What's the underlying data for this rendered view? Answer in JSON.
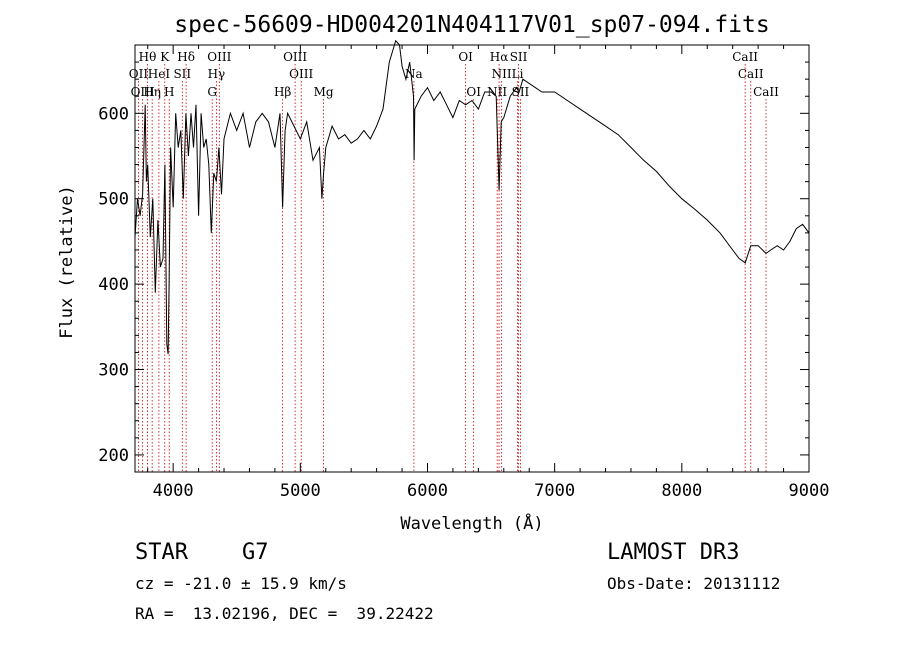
{
  "chart_data": {
    "type": "line",
    "title": "spec-56609-HD004201N404117V01_sp07-094.fits",
    "xlabel": "Wavelength (Å)",
    "ylabel": "Flux (relative)",
    "xlim": [
      3700,
      9000
    ],
    "ylim": [
      180,
      680
    ],
    "xticks": [
      4000,
      5000,
      6000,
      7000,
      8000,
      9000
    ],
    "yticks": [
      200,
      300,
      400,
      500,
      600
    ],
    "xtick_labels": [
      "4000",
      "5000",
      "6000",
      "7000",
      "8000",
      "9000"
    ],
    "ytick_labels": [
      "200",
      "300",
      "400",
      "500",
      "600"
    ],
    "grid": false,
    "series": [
      {
        "name": "flux",
        "x": [
          3700,
          3720,
          3740,
          3760,
          3780,
          3790,
          3800,
          3820,
          3840,
          3860,
          3880,
          3900,
          3920,
          3935,
          3950,
          3960,
          3968,
          3980,
          4000,
          4020,
          4040,
          4060,
          4080,
          4100,
          4120,
          4140,
          4160,
          4180,
          4200,
          4220,
          4240,
          4260,
          4280,
          4300,
          4320,
          4340,
          4360,
          4380,
          4400,
          4450,
          4500,
          4550,
          4600,
          4650,
          4700,
          4750,
          4800,
          4840,
          4861,
          4880,
          4900,
          4950,
          5000,
          5050,
          5100,
          5150,
          5170,
          5183,
          5200,
          5250,
          5300,
          5350,
          5400,
          5450,
          5500,
          5550,
          5600,
          5650,
          5700,
          5750,
          5780,
          5800,
          5830,
          5860,
          5890,
          5895,
          5900,
          5950,
          6000,
          6050,
          6100,
          6150,
          6200,
          6250,
          6300,
          6350,
          6400,
          6450,
          6500,
          6540,
          6563,
          6580,
          6600,
          6650,
          6700,
          6720,
          6750,
          6800,
          6900,
          7000,
          7100,
          7200,
          7300,
          7400,
          7500,
          7600,
          7700,
          7800,
          7900,
          8000,
          8100,
          8200,
          8300,
          8400,
          8450,
          8498,
          8542,
          8600,
          8662,
          8700,
          8750,
          8800,
          8850,
          8900,
          8950,
          9000
        ],
        "values": [
          455,
          500,
          480,
          505,
          610,
          520,
          540,
          455,
          500,
          390,
          475,
          420,
          430,
          540,
          330,
          318,
          400,
          560,
          490,
          600,
          560,
          580,
          500,
          600,
          550,
          600,
          560,
          610,
          480,
          600,
          560,
          570,
          540,
          460,
          530,
          520,
          560,
          505,
          570,
          600,
          580,
          600,
          560,
          590,
          600,
          590,
          560,
          600,
          490,
          580,
          600,
          585,
          570,
          590,
          545,
          560,
          500,
          530,
          560,
          585,
          570,
          575,
          565,
          570,
          580,
          570,
          585,
          605,
          660,
          685,
          680,
          655,
          640,
          660,
          620,
          545,
          605,
          620,
          630,
          615,
          625,
          610,
          595,
          615,
          610,
          615,
          605,
          625,
          625,
          620,
          510,
          590,
          595,
          620,
          630,
          625,
          640,
          635,
          625,
          625,
          615,
          605,
          595,
          585,
          575,
          560,
          545,
          532,
          515,
          500,
          488,
          475,
          460,
          440,
          430,
          425,
          445,
          445,
          436,
          440,
          445,
          440,
          450,
          465,
          470,
          460
        ]
      }
    ],
    "line_markers": [
      {
        "label": "Hθ",
        "x": 3798,
        "row": 1
      },
      {
        "label": "K",
        "x": 3934,
        "row": 1
      },
      {
        "label": "Hδ",
        "x": 4102,
        "row": 1
      },
      {
        "label": "OIII",
        "x": 4363,
        "row": 1
      },
      {
        "label": "OIII",
        "x": 4959,
        "row": 1
      },
      {
        "label": "OI",
        "x": 6300,
        "row": 1
      },
      {
        "label": "Hα",
        "x": 6563,
        "row": 1
      },
      {
        "label": "SII",
        "x": 6716,
        "row": 1
      },
      {
        "label": "CaII",
        "x": 8498,
        "row": 1
      },
      {
        "label": "OII",
        "x": 3727,
        "row": 2
      },
      {
        "label": "HeI",
        "x": 3888,
        "row": 2
      },
      {
        "label": "SII",
        "x": 4072,
        "row": 2
      },
      {
        "label": "Hγ",
        "x": 4340,
        "row": 2
      },
      {
        "label": "OIII",
        "x": 5007,
        "row": 2
      },
      {
        "label": "Na",
        "x": 5893,
        "row": 2
      },
      {
        "label": "NII",
        "x": 6583,
        "row": 2
      },
      {
        "label": "Li",
        "x": 6708,
        "row": 2
      },
      {
        "label": "CaII",
        "x": 8542,
        "row": 2
      },
      {
        "label": "OIII",
        "x": 3760,
        "row": 3
      },
      {
        "label": "Hη",
        "x": 3835,
        "row": 3
      },
      {
        "label": "H",
        "x": 3969,
        "row": 3
      },
      {
        "label": "G",
        "x": 4307,
        "row": 3
      },
      {
        "label": "Hβ",
        "x": 4861,
        "row": 3
      },
      {
        "label": "Mg",
        "x": 5183,
        "row": 3
      },
      {
        "label": "OI",
        "x": 6363,
        "row": 3
      },
      {
        "label": "NII",
        "x": 6548,
        "row": 3
      },
      {
        "label": "SII",
        "x": 6731,
        "row": 3
      },
      {
        "label": "CaII",
        "x": 8662,
        "row": 3
      }
    ]
  },
  "info": {
    "object_class": "STAR",
    "subclass": "G7",
    "cz": "cz = -21.0 ± 15.9 km/s",
    "coords": "RA =  13.02196, DEC =  39.22422",
    "survey": "LAMOST DR3",
    "obs_date": "Obs-Date: 20131112"
  },
  "colors": {
    "spectrum": "#000000",
    "marker_line": "#cc0000",
    "axes": "#000000"
  }
}
